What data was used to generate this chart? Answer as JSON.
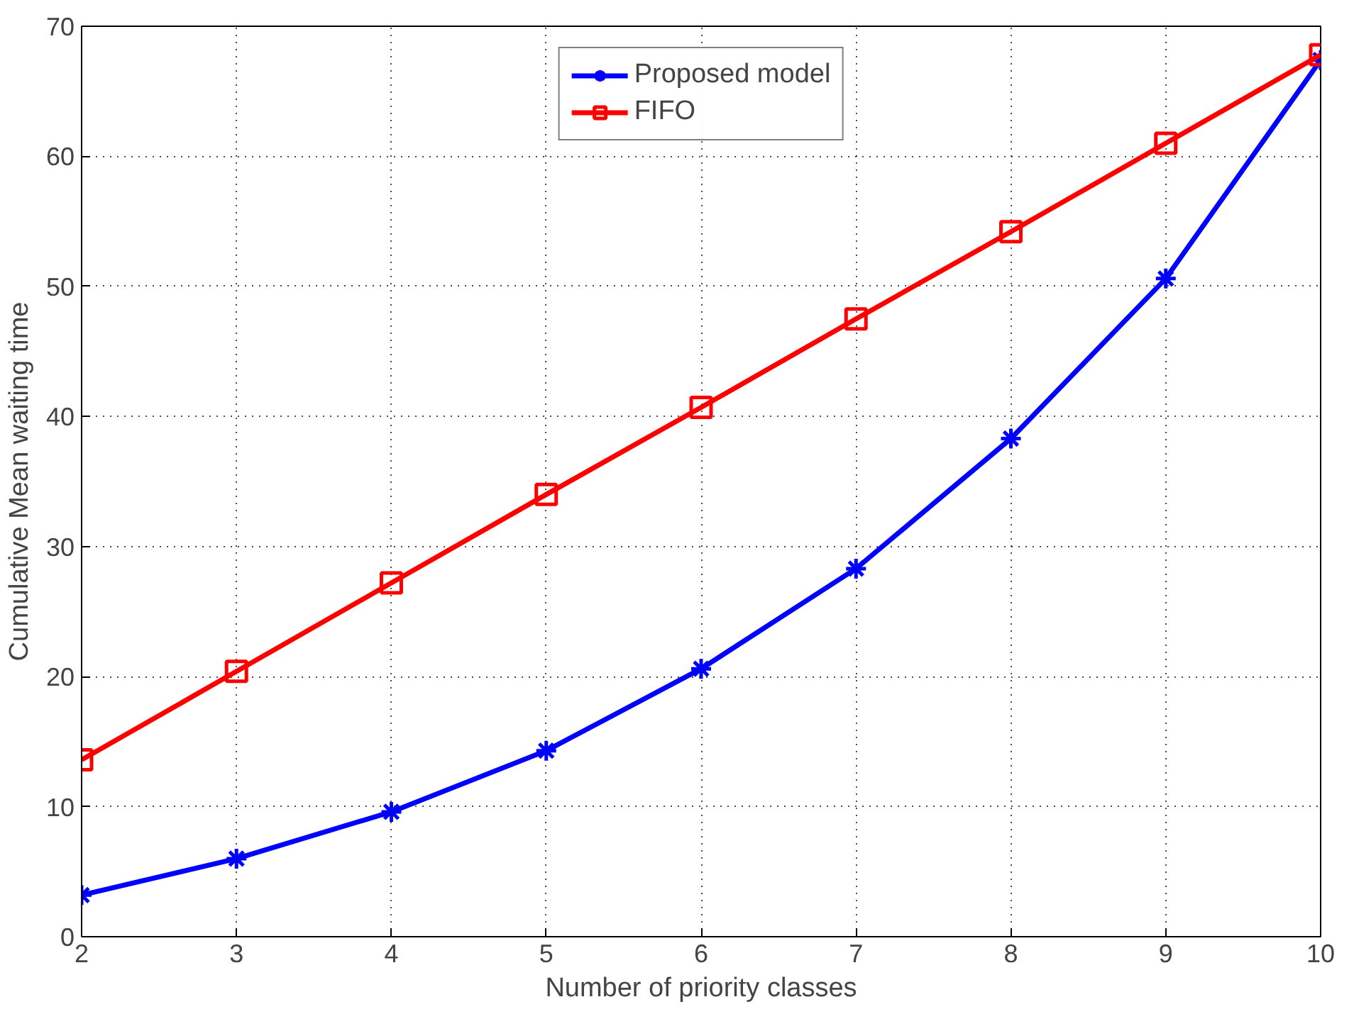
{
  "chart_data": {
    "type": "line",
    "xlabel": "Number of priority classes",
    "ylabel": "Cumulative Mean waiting time",
    "x": [
      2,
      3,
      4,
      5,
      6,
      7,
      8,
      9,
      10
    ],
    "series": [
      {
        "name": "Proposed model",
        "color": "#0000ff",
        "marker": "cross",
        "values": [
          3.2,
          6.0,
          9.6,
          14.3,
          20.6,
          28.3,
          38.3,
          50.6,
          67.4
        ]
      },
      {
        "name": "FIFO",
        "color": "#ff0000",
        "marker": "square",
        "values": [
          13.6,
          20.4,
          27.2,
          34.0,
          40.7,
          47.5,
          54.2,
          61.0,
          67.8
        ]
      }
    ],
    "xlim": [
      2,
      10
    ],
    "xticks": [
      2,
      3,
      4,
      5,
      6,
      7,
      8,
      9,
      10
    ],
    "ylim": [
      0,
      70
    ],
    "yticks": [
      0,
      10,
      20,
      30,
      40,
      50,
      60,
      70
    ],
    "grid": true,
    "legend": "top",
    "line_style": "solid"
  }
}
